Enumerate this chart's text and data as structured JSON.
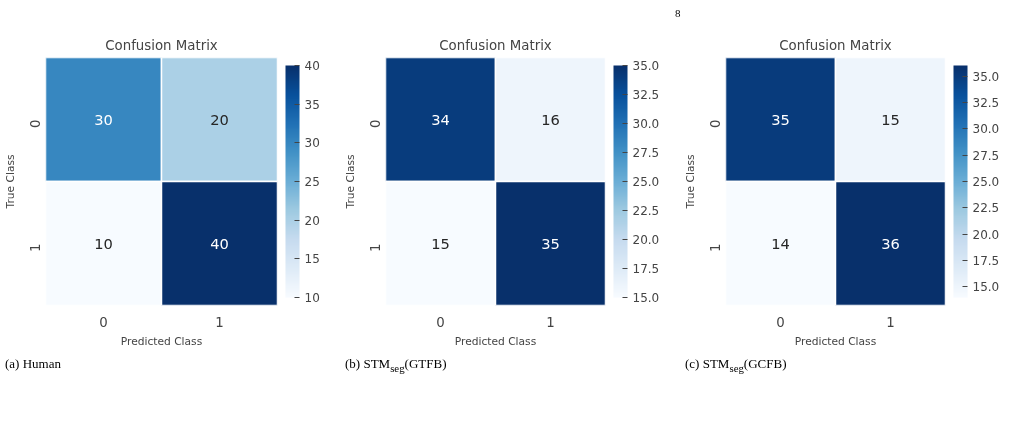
{
  "chart_data": [
    {
      "type": "heatmap",
      "title": "Confusion Matrix",
      "xlabel": "Predicted Class",
      "ylabel": "True Class",
      "categories": [
        "0",
        "1"
      ],
      "y_categories": [
        "0",
        "1"
      ],
      "cells": [
        [
          30,
          20
        ],
        [
          10,
          40
        ]
      ],
      "data_labels": true,
      "clim": [
        10,
        40
      ],
      "cticks": [
        10,
        15,
        20,
        25,
        30,
        35,
        40
      ],
      "annotations": [
        "(a) Human"
      ]
    },
    {
      "type": "heatmap",
      "title": "Confusion Matrix",
      "xlabel": "Predicted Class",
      "ylabel": "True Class",
      "categories": [
        "0",
        "1"
      ],
      "y_categories": [
        "0",
        "1"
      ],
      "cells": [
        [
          34,
          16
        ],
        [
          15,
          35
        ]
      ],
      "data_labels": true,
      "clim": [
        15,
        35
      ],
      "cticks": [
        {
          "value": 15,
          "label": "15.0"
        },
        {
          "value": 17.5,
          "label": "17.5"
        },
        {
          "value": 20,
          "label": "20.0"
        },
        {
          "value": 22.5,
          "label": "22.5"
        },
        {
          "value": 25,
          "label": "25.0"
        },
        {
          "value": 27.5,
          "label": "27.5"
        },
        {
          "value": 30,
          "label": "30.0"
        },
        {
          "value": 32.5,
          "label": "32.5"
        },
        {
          "value": 35,
          "label": "35.0"
        }
      ],
      "annotations": [
        "(b) STM$_{seg}$(GTFB)"
      ]
    },
    {
      "type": "heatmap",
      "title": "Confusion Matrix",
      "xlabel": "Predicted Class",
      "ylabel": "True Class",
      "categories": [
        "0",
        "1"
      ],
      "y_categories": [
        "0",
        "1"
      ],
      "cells": [
        [
          35,
          15
        ],
        [
          14,
          36
        ]
      ],
      "data_labels": true,
      "clim": [
        14,
        36
      ],
      "cticks": [
        {
          "value": 15,
          "label": "15.0"
        },
        {
          "value": 17.5,
          "label": "17.5"
        },
        {
          "value": 20,
          "label": "20.0"
        },
        {
          "value": 22.5,
          "label": "22.5"
        },
        {
          "value": 25,
          "label": "25.0"
        },
        {
          "value": 27.5,
          "label": "27.5"
        },
        {
          "value": 30,
          "label": "30.0"
        },
        {
          "value": 32.5,
          "label": "32.5"
        },
        {
          "value": 35,
          "label": "35.0"
        }
      ],
      "annotations": [
        "(c) STM$_{seg}$(GCFB)",
        "8"
      ]
    }
  ]
}
